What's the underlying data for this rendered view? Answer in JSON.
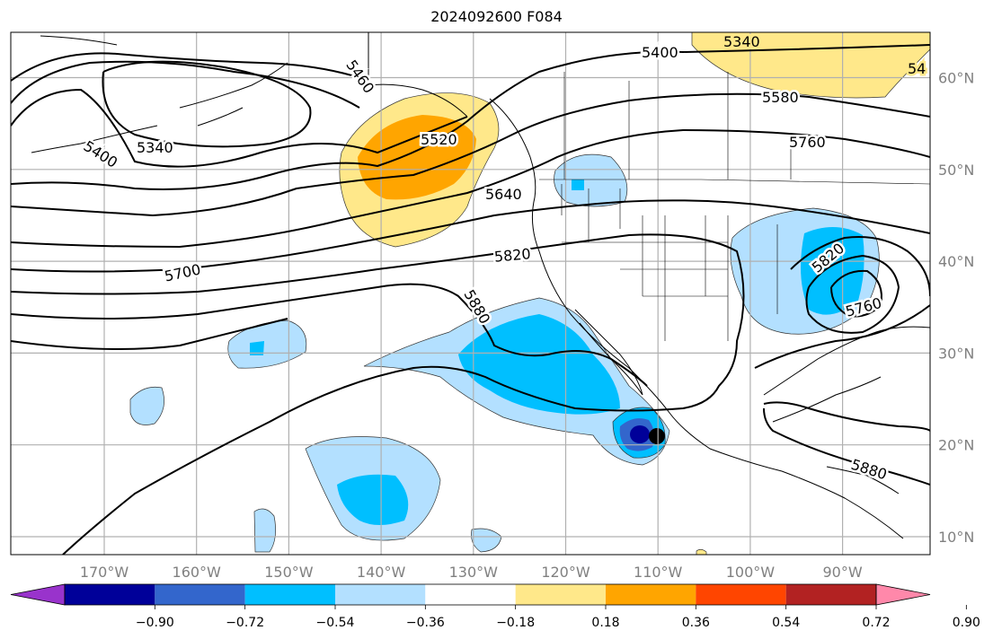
{
  "title": "2024092600 F084",
  "map": {
    "lon_labels": [
      {
        "lon": -170,
        "label": "170°W"
      },
      {
        "lon": -160,
        "label": "160°W"
      },
      {
        "lon": -150,
        "label": "150°W"
      },
      {
        "lon": -140,
        "label": "140°W"
      },
      {
        "lon": -130,
        "label": "130°W"
      },
      {
        "lon": -120,
        "label": "120°W"
      },
      {
        "lon": -110,
        "label": "110°W"
      },
      {
        "lon": -100,
        "label": "100°W"
      },
      {
        "lon": -90,
        "label": "90°W"
      }
    ],
    "lat_labels": [
      {
        "lat": 60,
        "label": "60°N"
      },
      {
        "lat": 50,
        "label": "50°N"
      },
      {
        "lat": 40,
        "label": "40°N"
      },
      {
        "lat": 30,
        "label": "30°N"
      },
      {
        "lat": 20,
        "label": "20°N"
      },
      {
        "lat": 10,
        "label": "10°N"
      }
    ],
    "contour_labels": [
      "5340",
      "5400",
      "5400",
      "5460",
      "5520",
      "5580",
      "5640",
      "5700",
      "5760",
      "5760",
      "5820",
      "5820",
      "5880",
      "5880",
      "5340",
      "54"
    ],
    "colors": {
      "land_outline": "#000000",
      "grid": "#b0b0b0",
      "axis_label": "#808080"
    }
  },
  "colorbar": {
    "colors": [
      "#9933cc",
      "#000099",
      "#3366cc",
      "#00bfff",
      "#b3e0ff",
      "#ffffff",
      "#ffe88a",
      "#ffa500",
      "#ff4500",
      "#b22222",
      "#ff88aa"
    ],
    "ticks": [
      "−0.90",
      "−0.72",
      "−0.54",
      "−0.36",
      "−0.18",
      "0.18",
      "0.36",
      "0.54",
      "0.72",
      "0.90"
    ]
  }
}
